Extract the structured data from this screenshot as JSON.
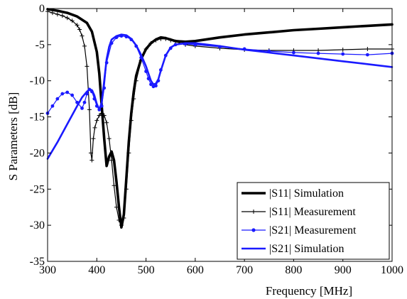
{
  "chart_data": {
    "type": "line",
    "title": "",
    "xlabel": "Frequency [MHz]",
    "ylabel": "S Parameters [dB]",
    "xlim": [
      300,
      1000
    ],
    "ylim": [
      -35,
      0
    ],
    "xticks": [
      300,
      400,
      500,
      600,
      700,
      800,
      900,
      1000
    ],
    "yticks": [
      0,
      -5,
      -10,
      -15,
      -20,
      -25,
      -30,
      -35
    ],
    "grid": false,
    "legend_position": "bottom-right",
    "series": [
      {
        "name": "|S11| Simulation",
        "color": "#000000",
        "line_style": "solid-thick",
        "marker": "none",
        "x": [
          300,
          320,
          340,
          360,
          380,
          390,
          400,
          405,
          410,
          415,
          420,
          425,
          430,
          435,
          440,
          445,
          450,
          455,
          460,
          465,
          470,
          475,
          480,
          490,
          500,
          510,
          520,
          530,
          540,
          550,
          560,
          580,
          600,
          650,
          700,
          750,
          800,
          850,
          900,
          950,
          1000
        ],
        "y": [
          -0.1,
          -0.3,
          -0.6,
          -1.1,
          -2.0,
          -3.2,
          -6.0,
          -9.0,
          -13.5,
          -18.0,
          -21.8,
          -20.5,
          -19.8,
          -21.0,
          -24.0,
          -27.5,
          -30.3,
          -28.5,
          -23.5,
          -18.5,
          -14.5,
          -11.5,
          -9.3,
          -7.0,
          -5.6,
          -4.8,
          -4.3,
          -4.0,
          -4.1,
          -4.3,
          -4.5,
          -4.6,
          -4.5,
          -4.0,
          -3.6,
          -3.3,
          -3.0,
          -2.8,
          -2.6,
          -2.4,
          -2.2
        ]
      },
      {
        "name": "|S11| Measurement",
        "color": "#000000",
        "line_style": "solid-thin",
        "marker": "plus",
        "x": [
          300,
          310,
          320,
          330,
          340,
          350,
          360,
          365,
          370,
          375,
          380,
          385,
          388,
          390,
          393,
          396,
          400,
          405,
          410,
          415,
          420,
          425,
          430,
          435,
          440,
          445,
          450,
          455,
          460,
          465,
          470,
          475,
          480,
          490,
          500,
          510,
          520,
          530,
          540,
          550,
          560,
          580,
          600,
          650,
          700,
          750,
          800,
          850,
          900,
          950,
          1000
        ],
        "y": [
          -0.4,
          -0.6,
          -0.8,
          -1.0,
          -1.3,
          -1.7,
          -2.3,
          -2.9,
          -3.8,
          -5.2,
          -8.0,
          -14.0,
          -20.0,
          -21.0,
          -18.0,
          -16.5,
          -15.5,
          -14.8,
          -14.5,
          -14.8,
          -15.8,
          -18.0,
          -21.0,
          -24.5,
          -27.5,
          -29.3,
          -30.0,
          -29.0,
          -25.0,
          -20.0,
          -15.5,
          -12.5,
          -10.0,
          -7.2,
          -5.6,
          -4.8,
          -4.4,
          -4.2,
          -4.2,
          -4.4,
          -4.6,
          -5.0,
          -5.2,
          -5.5,
          -5.7,
          -5.8,
          -5.8,
          -5.8,
          -5.7,
          -5.6,
          -5.6
        ]
      },
      {
        "name": "|S21| Measurement",
        "color": "#1a1aff",
        "line_style": "solid-thin",
        "marker": "dot",
        "x": [
          300,
          310,
          320,
          330,
          340,
          350,
          360,
          370,
          375,
          380,
          385,
          390,
          395,
          400,
          405,
          410,
          415,
          420,
          430,
          440,
          450,
          460,
          470,
          480,
          490,
          500,
          505,
          510,
          515,
          520,
          525,
          530,
          540,
          550,
          560,
          580,
          600,
          650,
          700,
          750,
          800,
          850,
          900,
          950,
          1000
        ],
        "y": [
          -14.5,
          -13.5,
          -12.5,
          -11.8,
          -11.6,
          -12.0,
          -13.0,
          -13.8,
          -13.0,
          -11.8,
          -11.2,
          -11.5,
          -12.5,
          -13.5,
          -14.0,
          -13.5,
          -11.0,
          -7.5,
          -4.8,
          -4.0,
          -3.8,
          -3.9,
          -4.3,
          -5.2,
          -6.8,
          -8.7,
          -9.7,
          -10.5,
          -10.8,
          -10.7,
          -10.0,
          -8.5,
          -6.5,
          -5.5,
          -5.0,
          -4.9,
          -5.0,
          -5.3,
          -5.6,
          -5.9,
          -6.1,
          -6.2,
          -6.3,
          -6.4,
          -6.2
        ]
      },
      {
        "name": "|S21| Simulation",
        "color": "#1a1aff",
        "line_style": "solid-medium",
        "marker": "none",
        "x": [
          300,
          320,
          340,
          360,
          370,
          380,
          385,
          390,
          395,
          400,
          405,
          410,
          415,
          420,
          425,
          430,
          440,
          450,
          460,
          470,
          480,
          490,
          500,
          505,
          510,
          515,
          520,
          525,
          530,
          540,
          550,
          560,
          580,
          600,
          650,
          700,
          750,
          800,
          850,
          900,
          950,
          1000
        ],
        "y": [
          -20.8,
          -18.5,
          -16.0,
          -13.5,
          -12.3,
          -11.5,
          -11.2,
          -11.3,
          -12.0,
          -13.2,
          -14.0,
          -13.0,
          -10.0,
          -7.0,
          -5.3,
          -4.3,
          -3.8,
          -3.6,
          -3.7,
          -4.2,
          -5.1,
          -6.4,
          -8.0,
          -9.0,
          -10.0,
          -10.5,
          -10.4,
          -9.8,
          -8.6,
          -6.5,
          -5.4,
          -5.0,
          -4.8,
          -4.8,
          -5.2,
          -5.7,
          -6.1,
          -6.5,
          -6.9,
          -7.3,
          -7.7,
          -8.1
        ]
      }
    ]
  }
}
